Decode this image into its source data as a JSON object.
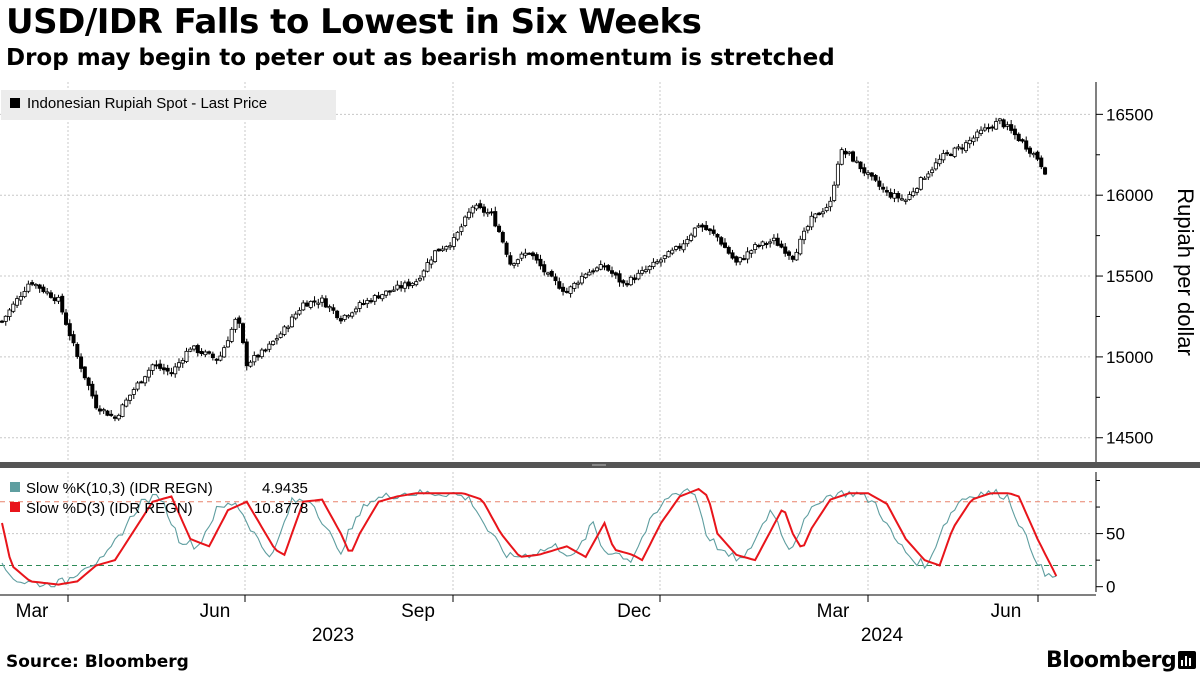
{
  "header": {
    "title": "USD/IDR Falls to Lowest in Six Weeks",
    "subtitle": "Drop may begin to peter out as bearish momentum is stretched"
  },
  "footer": {
    "source": "Source: Bloomberg",
    "brand": "Bloomberg"
  },
  "colors": {
    "candle": "#000000",
    "slow_k": "#5f9ea0",
    "slow_d": "#e8151b",
    "ob_line": "#e8826b",
    "os_line": "#2e8b57"
  },
  "chart_data": [
    {
      "type": "candlestick",
      "legend": "Indonesian Rupiah Spot - Last Price",
      "ylabel": "Rupiah per dollar",
      "ylim": [
        14350,
        16700
      ],
      "yticks": [
        14500,
        15000,
        15500,
        16000,
        16500
      ],
      "anchors": [
        [
          0,
          15220
        ],
        [
          1.5,
          15470
        ],
        [
          3,
          15350
        ],
        [
          4,
          15000
        ],
        [
          5,
          14700
        ],
        [
          6,
          14620
        ],
        [
          7,
          14800
        ],
        [
          8,
          14950
        ],
        [
          9,
          14900
        ],
        [
          10,
          15060
        ],
        [
          11.5,
          14980
        ],
        [
          12.5,
          15250
        ],
        [
          13,
          14960
        ],
        [
          14,
          15040
        ],
        [
          15,
          15170
        ],
        [
          16,
          15330
        ],
        [
          17,
          15350
        ],
        [
          18,
          15240
        ],
        [
          19,
          15320
        ],
        [
          20,
          15380
        ],
        [
          22,
          15470
        ],
        [
          23,
          15650
        ],
        [
          24,
          15720
        ],
        [
          25,
          15930
        ],
        [
          26,
          15880
        ],
        [
          26.5,
          15750
        ],
        [
          27,
          15580
        ],
        [
          28,
          15650
        ],
        [
          29,
          15500
        ],
        [
          30,
          15400
        ],
        [
          31,
          15520
        ],
        [
          32,
          15560
        ],
        [
          33,
          15450
        ],
        [
          34,
          15520
        ],
        [
          35,
          15600
        ],
        [
          36,
          15680
        ],
        [
          37,
          15820
        ],
        [
          38,
          15740
        ],
        [
          39,
          15580
        ],
        [
          40,
          15680
        ],
        [
          41,
          15720
        ],
        [
          42,
          15620
        ],
        [
          43,
          15850
        ],
        [
          44,
          15950
        ],
        [
          44.5,
          16270
        ],
        [
          45,
          16250
        ],
        [
          46,
          16120
        ],
        [
          47,
          16010
        ],
        [
          48,
          15970
        ],
        [
          49,
          16120
        ],
        [
          50,
          16240
        ],
        [
          51,
          16300
        ],
        [
          52,
          16390
        ],
        [
          53,
          16460
        ],
        [
          54,
          16350
        ],
        [
          55,
          16230
        ],
        [
          55.5,
          16130
        ]
      ]
    },
    {
      "type": "line",
      "series": [
        {
          "name": "Slow %K(10,3) (IDR REGN)",
          "last": "4.9435"
        },
        {
          "name": "Slow %D(3) (IDR REGN)",
          "last": "10.8778"
        }
      ],
      "ylim": [
        -5,
        108
      ],
      "yticks": [
        0,
        50
      ],
      "ref_lines": [
        80,
        20
      ],
      "d_anchors": [
        [
          0,
          60
        ],
        [
          0.5,
          20
        ],
        [
          1.5,
          5
        ],
        [
          3,
          2
        ],
        [
          4,
          5
        ],
        [
          5,
          20
        ],
        [
          6,
          25
        ],
        [
          8,
          80
        ],
        [
          9,
          85
        ],
        [
          10,
          45
        ],
        [
          11,
          38
        ],
        [
          12,
          72
        ],
        [
          13,
          80
        ],
        [
          14.5,
          35
        ],
        [
          15,
          30
        ],
        [
          16,
          80
        ],
        [
          17,
          82
        ],
        [
          18,
          50
        ],
        [
          18.5,
          30
        ],
        [
          19,
          50
        ],
        [
          20,
          80
        ],
        [
          21,
          85
        ],
        [
          22,
          88
        ],
        [
          23,
          88
        ],
        [
          24.5,
          88
        ],
        [
          25.5,
          82
        ],
        [
          26.5,
          50
        ],
        [
          27.5,
          28
        ],
        [
          28.5,
          30
        ],
        [
          30,
          38
        ],
        [
          31,
          28
        ],
        [
          32,
          60
        ],
        [
          32.5,
          35
        ],
        [
          33.5,
          30
        ],
        [
          34,
          25
        ],
        [
          35,
          60
        ],
        [
          36,
          85
        ],
        [
          37,
          92
        ],
        [
          37.5,
          85
        ],
        [
          38,
          50
        ],
        [
          39,
          30
        ],
        [
          40,
          25
        ],
        [
          41.5,
          75
        ],
        [
          42,
          50
        ],
        [
          42.5,
          35
        ],
        [
          43,
          55
        ],
        [
          44,
          82
        ],
        [
          45,
          88
        ],
        [
          46,
          88
        ],
        [
          47,
          78
        ],
        [
          48,
          45
        ],
        [
          49,
          25
        ],
        [
          49.8,
          20
        ],
        [
          50.5,
          55
        ],
        [
          51.5,
          82
        ],
        [
          52.5,
          88
        ],
        [
          53.5,
          88
        ],
        [
          54,
          85
        ],
        [
          55,
          45
        ],
        [
          56,
          10
        ]
      ],
      "x_axis": {
        "months": [
          "Mar",
          "Jun",
          "Sep",
          "Dec",
          "Mar",
          "Jun"
        ],
        "years": [
          "2023",
          "2024"
        ]
      }
    }
  ]
}
